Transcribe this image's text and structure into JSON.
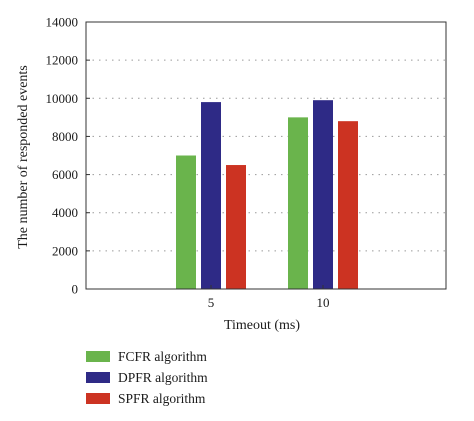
{
  "chart_data": {
    "type": "bar",
    "title": "",
    "xlabel": "Timeout (ms)",
    "ylabel": "The number of responded events",
    "categories": [
      "5",
      "10"
    ],
    "series": [
      {
        "name": "FCFR algorithm",
        "color": "#6ab44c",
        "values": [
          7000,
          9000
        ]
      },
      {
        "name": "DPFR algorithm",
        "color": "#2e2a86",
        "values": [
          9800,
          9900
        ]
      },
      {
        "name": "SPFR algorithm",
        "color": "#cc3322",
        "values": [
          6500,
          8800
        ]
      }
    ],
    "ylim": [
      0,
      14000
    ],
    "yticks": [
      0,
      2000,
      4000,
      6000,
      8000,
      10000,
      12000,
      14000
    ],
    "grid": "horizontal dotted",
    "legend_position": "bottom-left"
  }
}
